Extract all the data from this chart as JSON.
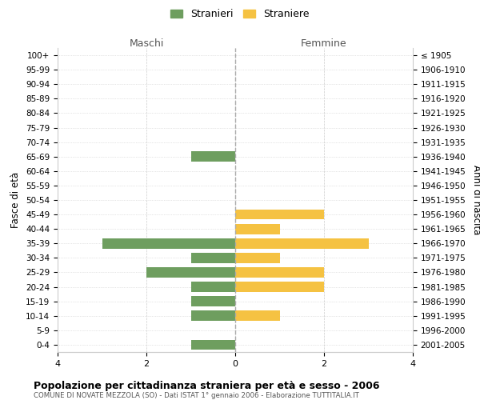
{
  "age_groups": [
    "0-4",
    "5-9",
    "10-14",
    "15-19",
    "20-24",
    "25-29",
    "30-34",
    "35-39",
    "40-44",
    "45-49",
    "50-54",
    "55-59",
    "60-64",
    "65-69",
    "70-74",
    "75-79",
    "80-84",
    "85-89",
    "90-94",
    "95-99",
    "100+"
  ],
  "birth_years": [
    "2001-2005",
    "1996-2000",
    "1991-1995",
    "1986-1990",
    "1981-1985",
    "1976-1980",
    "1971-1975",
    "1966-1970",
    "1961-1965",
    "1956-1960",
    "1951-1955",
    "1946-1950",
    "1941-1945",
    "1936-1940",
    "1931-1935",
    "1926-1930",
    "1921-1925",
    "1916-1920",
    "1911-1915",
    "1906-1910",
    "≤ 1905"
  ],
  "maschi": [
    1,
    0,
    1,
    1,
    1,
    2,
    1,
    3,
    0,
    0,
    0,
    0,
    0,
    1,
    0,
    0,
    0,
    0,
    0,
    0,
    0
  ],
  "femmine": [
    0,
    0,
    1,
    0,
    2,
    2,
    1,
    3,
    1,
    2,
    0,
    0,
    0,
    0,
    0,
    0,
    0,
    0,
    0,
    0,
    0
  ],
  "color_maschi": "#6e9e5f",
  "color_femmine": "#f5c242",
  "title": "Popolazione per cittadinanza straniera per età e sesso - 2006",
  "subtitle": "COMUNE DI NOVATE MEZZOLA (SO) - Dati ISTAT 1° gennaio 2006 - Elaborazione TUTTITALIA.IT",
  "ylabel_left": "Fasce di età",
  "ylabel_right": "Anni di nascita",
  "xlabel_left": "Maschi",
  "xlabel_right": "Femmine",
  "legend_stranieri": "Stranieri",
  "legend_straniere": "Straniere",
  "xlim": 4,
  "background_color": "#ffffff",
  "grid_color": "#cccccc"
}
